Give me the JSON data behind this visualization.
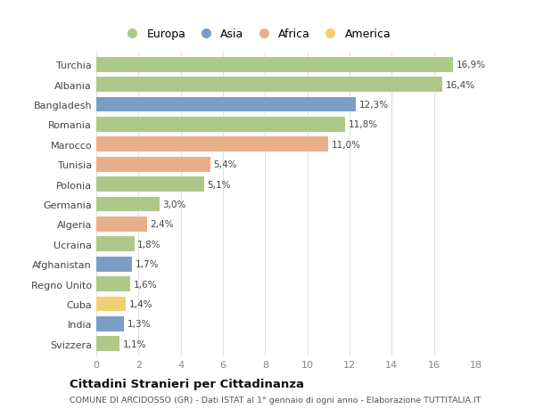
{
  "categories": [
    "Turchia",
    "Albania",
    "Bangladesh",
    "Romania",
    "Marocco",
    "Tunisia",
    "Polonia",
    "Germania",
    "Algeria",
    "Ucraina",
    "Afghanistan",
    "Regno Unito",
    "Cuba",
    "India",
    "Svizzera"
  ],
  "values": [
    16.9,
    16.4,
    12.3,
    11.8,
    11.0,
    5.4,
    5.1,
    3.0,
    2.4,
    1.8,
    1.7,
    1.6,
    1.4,
    1.3,
    1.1
  ],
  "labels": [
    "16,9%",
    "16,4%",
    "12,3%",
    "11,8%",
    "11,0%",
    "5,4%",
    "5,1%",
    "3,0%",
    "2,4%",
    "1,8%",
    "1,7%",
    "1,6%",
    "1,4%",
    "1,3%",
    "1,1%"
  ],
  "continents": [
    "Europa",
    "Europa",
    "Asia",
    "Europa",
    "Africa",
    "Africa",
    "Europa",
    "Europa",
    "Africa",
    "Europa",
    "Asia",
    "Europa",
    "America",
    "Asia",
    "Europa"
  ],
  "colors": {
    "Europa": "#adc98a",
    "Asia": "#7b9dc7",
    "Africa": "#e8b08a",
    "America": "#f0d070"
  },
  "legend_order": [
    "Europa",
    "Asia",
    "Africa",
    "America"
  ],
  "xlim": [
    0,
    18
  ],
  "xticks": [
    0,
    2,
    4,
    6,
    8,
    10,
    12,
    14,
    16,
    18
  ],
  "title": "Cittadini Stranieri per Cittadinanza",
  "subtitle": "COMUNE DI ARCIDOSSO (GR) - Dati ISTAT al 1° gennaio di ogni anno - Elaborazione TUTTITALIA.IT",
  "background_color": "#ffffff",
  "grid_color": "#e0e0e0"
}
